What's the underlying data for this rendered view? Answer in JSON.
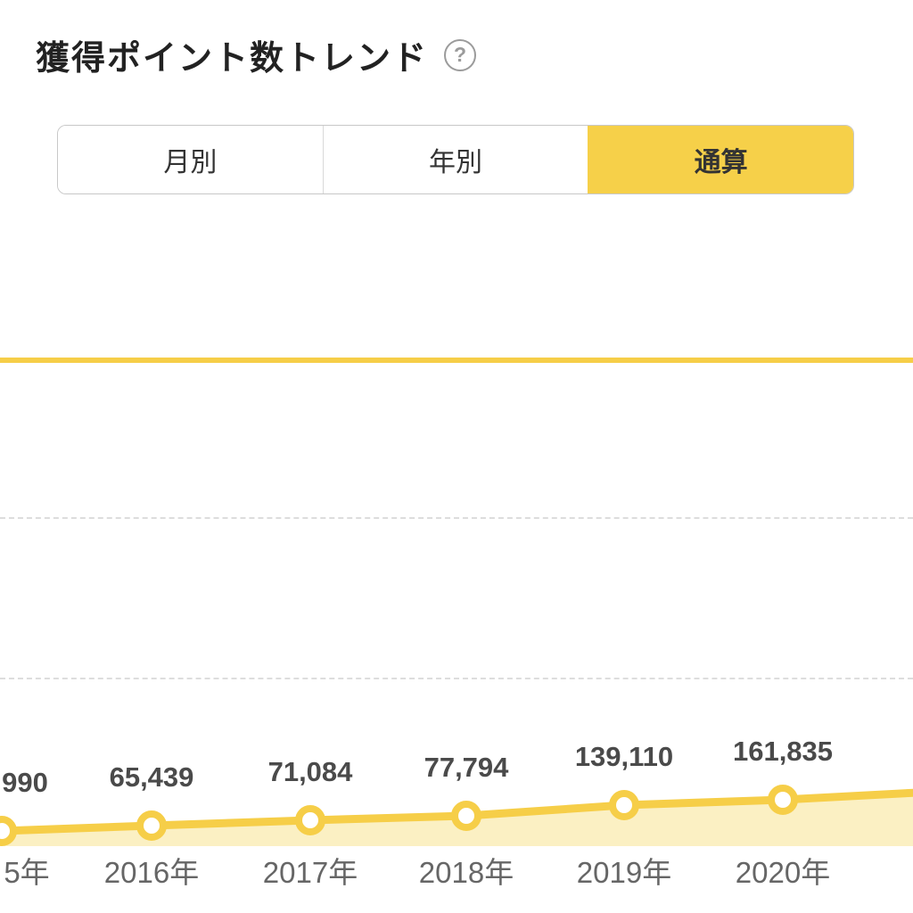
{
  "header": {
    "title": "獲得ポイント数トレンド",
    "help_label": "?"
  },
  "tabs": {
    "items": [
      {
        "label": "月別",
        "selected": false
      },
      {
        "label": "年別",
        "selected": false
      },
      {
        "label": "通算",
        "selected": true
      }
    ]
  },
  "colors": {
    "accent": "#F6CE48",
    "accent_fill": "#FBF0C3",
    "grid_dashed": "#DDDDDD",
    "point_label": "#4A4A4A",
    "axis_label": "#666666"
  },
  "chart_data": {
    "type": "line",
    "categories": [
      "5年",
      "2016年",
      "2017年",
      "2018年",
      "2019年",
      "2020年"
    ],
    "point_labels": [
      "990",
      "65,439",
      "71,084",
      "77,794",
      "139,110",
      "161,835"
    ],
    "values": [
      null,
      65439,
      71084,
      77794,
      139110,
      161835
    ],
    "legend": "none",
    "grid": "horizontal"
  }
}
